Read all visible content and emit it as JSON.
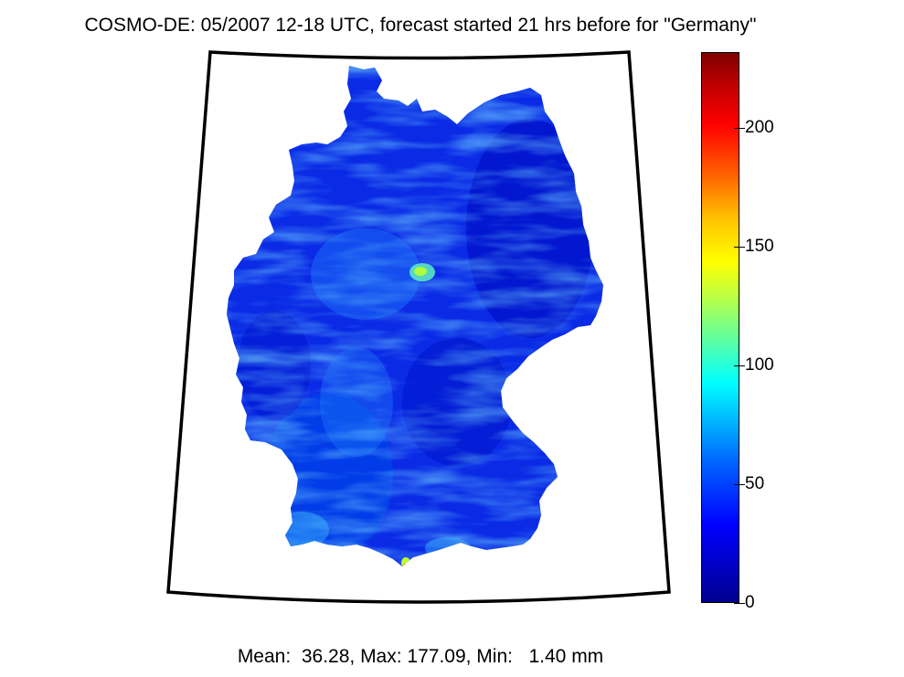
{
  "title": "COSMO-DE: 05/2007 12-18 UTC, forecast started 21 hrs before for \"Germany\"",
  "stats_line": "Mean:  36.28, Max: 177.09, Min:   1.40 mm",
  "region": "Germany",
  "colorbar": {
    "min": 0,
    "max": 232,
    "ticks": [
      "0",
      "50",
      "100",
      "150",
      "200"
    ],
    "tick_values": [
      0,
      50,
      100,
      150,
      200
    ],
    "colormap": "jet"
  },
  "colors": {
    "background_field": "#0a2ae6",
    "highlight": "#40c8ff",
    "hotspot": "#b8ff30"
  }
}
